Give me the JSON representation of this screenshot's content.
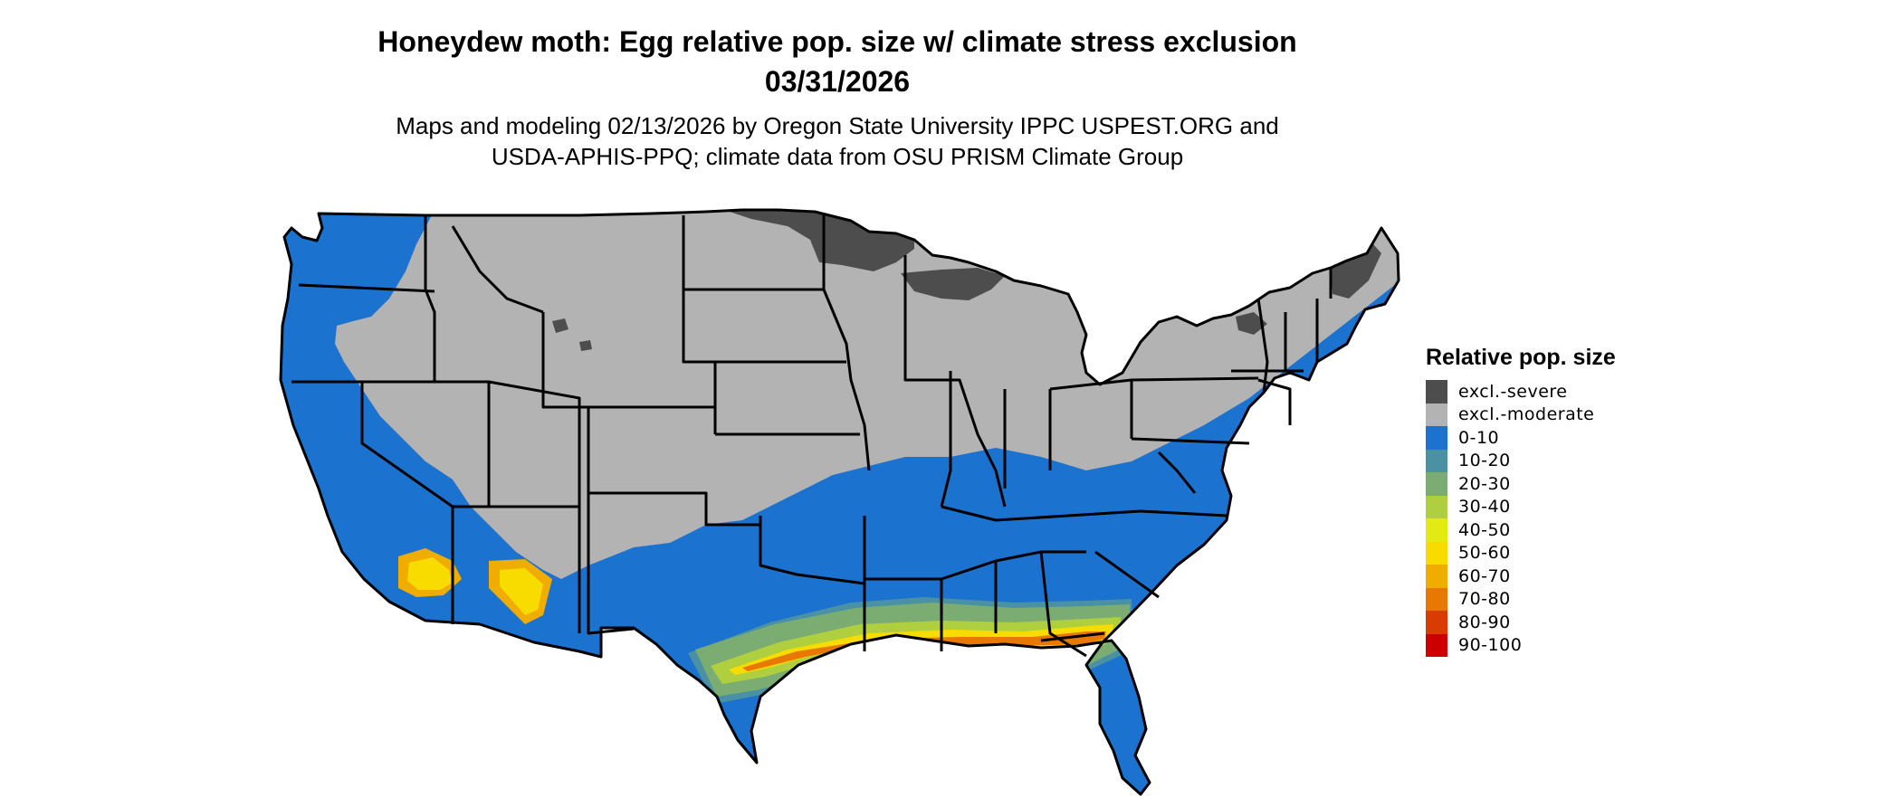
{
  "title_lines": [
    "Honeydew moth: Egg relative pop. size w/ climate stress exclusion",
    "03/31/2026"
  ],
  "subtitle_lines": [
    "Maps and modeling 02/13/2026 by Oregon State University IPPC USPEST.ORG and",
    "USDA-APHIS-PPQ; climate data from OSU PRISM Climate Group"
  ],
  "legend": {
    "title": "Relative pop. size",
    "items": [
      {
        "label": "excl.-severe",
        "color": "#4d4d4d"
      },
      {
        "label": "excl.-moderate",
        "color": "#b3b3b3"
      },
      {
        "label": "0-10",
        "color": "#1c72cf"
      },
      {
        "label": "10-20",
        "color": "#4a91a4"
      },
      {
        "label": "20-30",
        "color": "#7bad73"
      },
      {
        "label": "30-40",
        "color": "#b0cf3f"
      },
      {
        "label": "40-50",
        "color": "#e3ea13"
      },
      {
        "label": "50-60",
        "color": "#f8dc00"
      },
      {
        "label": "60-70",
        "color": "#f0ad00"
      },
      {
        "label": "70-80",
        "color": "#e87800"
      },
      {
        "label": "80-90",
        "color": "#d93c00"
      },
      {
        "label": "90-100",
        "color": "#cc0000"
      }
    ]
  }
}
